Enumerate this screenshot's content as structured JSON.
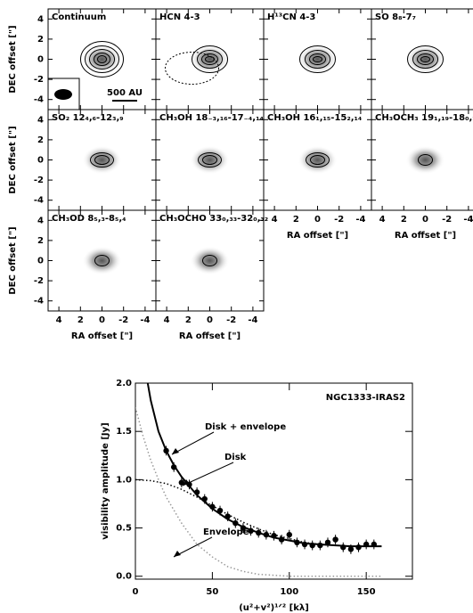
{
  "chart_data": [
    {
      "type": "contour",
      "xlabel": "RA offset [\"]",
      "ylabel": "DEC offset [\"]",
      "xlim": [
        5,
        -5
      ],
      "ylim": [
        -5,
        5
      ],
      "xticks": [
        4,
        2,
        0,
        -2,
        -4
      ],
      "yticks": [
        4,
        2,
        0,
        -2,
        -4
      ],
      "scale_bar": "500 AU",
      "panels": [
        {
          "title": "Continuum"
        },
        {
          "title": "HCN 4-3"
        },
        {
          "title": "H¹³CN 4-3"
        },
        {
          "title": "SO 8₈-7₇"
        },
        {
          "title": "SO₂ 12₄,₆-12₃,₉"
        },
        {
          "title": "CH₃OH 18₋₃,₁₆-17₋₄,₁₄"
        },
        {
          "title": "CH₃OH 16₁,₁₅-15₂,₁₄"
        },
        {
          "title": "CH₃OCH₃ 19₁,₁₉-18₀,₁₈"
        },
        {
          "title": "CH₃OD 8₅,₃-8₅,₄"
        },
        {
          "title": "CH₃OCHO 33₀,₃₃-32₀,₃₂"
        }
      ]
    },
    {
      "type": "scatter",
      "title": "NGC1333-IRAS2",
      "xlabel": "(u²+v²)¹ᐟ² [kλ]",
      "ylabel": "visibility amplitude [Jy]",
      "xlim": [
        0,
        180
      ],
      "ylim": [
        -0.03,
        2.0
      ],
      "xticks": [
        0,
        50,
        100,
        150
      ],
      "yticks": [
        {
          "value": 0,
          "label": "0.0"
        },
        0.5,
        {
          "value": 1,
          "label": "1.0"
        },
        1.5,
        {
          "value": 2,
          "label": "2.0"
        }
      ],
      "x": [
        20,
        25,
        30,
        35,
        40,
        45,
        50,
        55,
        60,
        65,
        70,
        75,
        80,
        85,
        90,
        95,
        100,
        105,
        110,
        115,
        120,
        125,
        130,
        135,
        140,
        145,
        150,
        155
      ],
      "values": [
        1.3,
        1.13,
        0.97,
        0.95,
        0.87,
        0.8,
        0.72,
        0.68,
        0.62,
        0.55,
        0.5,
        0.47,
        0.45,
        0.43,
        0.42,
        0.38,
        0.43,
        0.35,
        0.33,
        0.32,
        0.32,
        0.35,
        0.38,
        0.3,
        0.28,
        0.3,
        0.33,
        0.33
      ],
      "errors": [
        0.05,
        0.05,
        0.05,
        0.05,
        0.05,
        0.05,
        0.05,
        0.05,
        0.05,
        0.05,
        0.05,
        0.05,
        0.05,
        0.05,
        0.05,
        0.05,
        0.05,
        0.05,
        0.05,
        0.05,
        0.05,
        0.05,
        0.05,
        0.05,
        0.05,
        0.05,
        0.05,
        0.05
      ],
      "series": [
        {
          "name": "Disk + envelope",
          "color": "#000000",
          "style": "solid",
          "x": [
            8,
            10,
            15,
            20,
            25,
            30,
            40,
            50,
            60,
            70,
            80,
            90,
            100,
            110,
            120,
            130,
            140,
            150,
            160
          ],
          "values": [
            2.0,
            1.82,
            1.5,
            1.3,
            1.15,
            1.03,
            0.84,
            0.7,
            0.59,
            0.51,
            0.45,
            0.4,
            0.37,
            0.34,
            0.33,
            0.32,
            0.31,
            0.31,
            0.31
          ]
        },
        {
          "name": "Disk",
          "color": "#000000",
          "style": "dotted",
          "x": [
            0,
            10,
            20,
            30,
            40,
            50,
            60,
            70,
            80,
            90,
            100,
            110,
            120,
            130,
            140,
            150,
            160
          ],
          "values": [
            1.0,
            0.99,
            0.96,
            0.9,
            0.82,
            0.73,
            0.64,
            0.56,
            0.49,
            0.43,
            0.39,
            0.35,
            0.33,
            0.32,
            0.31,
            0.31,
            0.31
          ]
        },
        {
          "name": "Envelope",
          "color": "#999999",
          "style": "dotted",
          "x": [
            0,
            5,
            10,
            15,
            20,
            30,
            40,
            50,
            60,
            70,
            80,
            100,
            120,
            140,
            160
          ],
          "values": [
            1.75,
            1.45,
            1.2,
            1.0,
            0.82,
            0.55,
            0.33,
            0.2,
            0.1,
            0.05,
            0.02,
            0,
            0,
            0,
            0
          ]
        }
      ]
    }
  ]
}
